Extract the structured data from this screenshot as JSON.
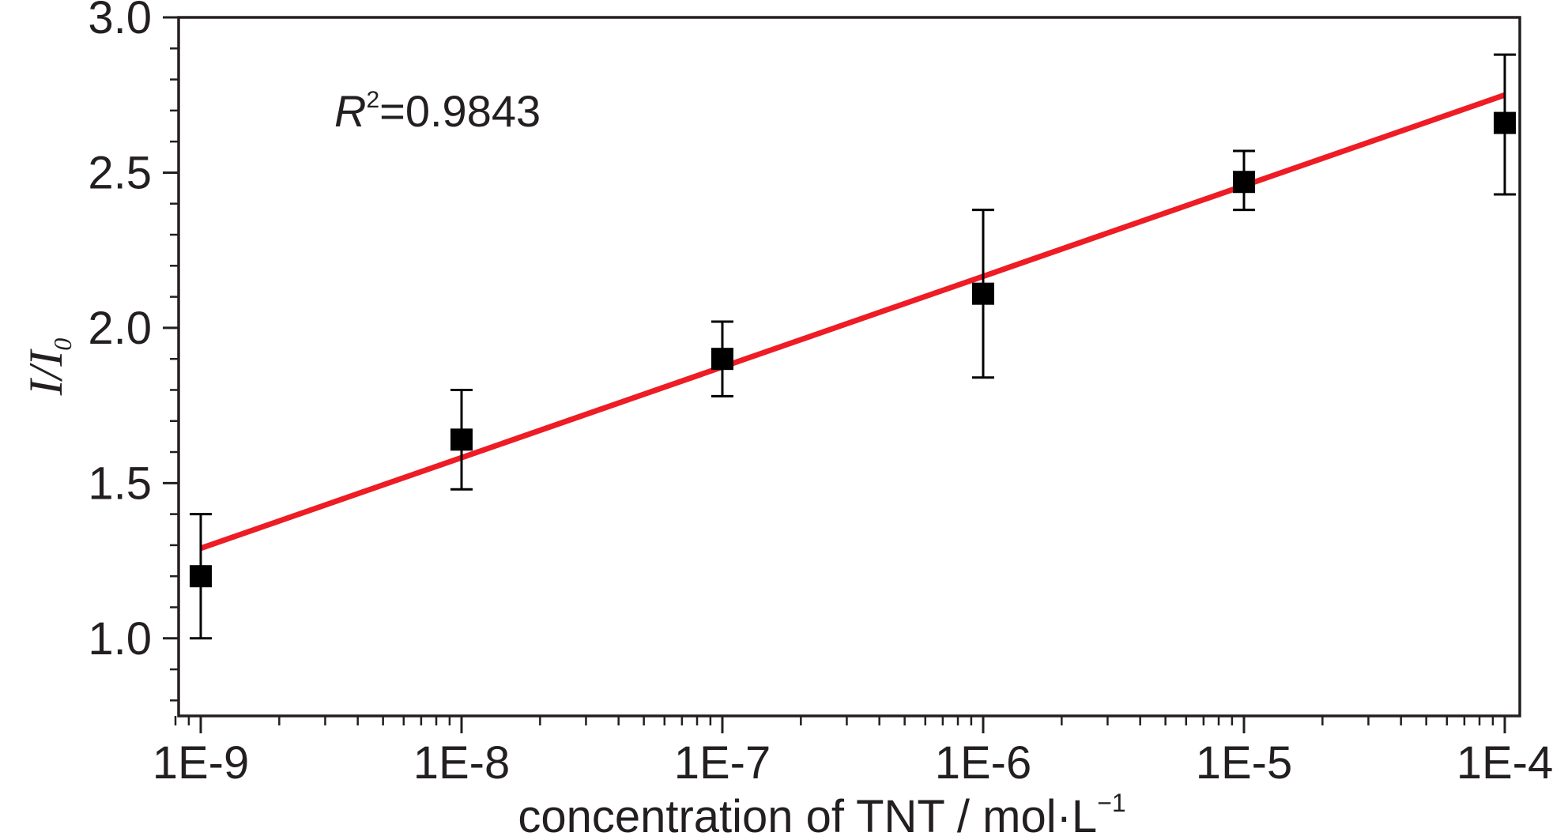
{
  "chart_data": {
    "type": "scatter",
    "title": "",
    "xlabel": "concentration of TNT / mol·L",
    "xlabel_sup": "−1",
    "ylabel": "I/I",
    "ylabel_sub": "0",
    "x_scale": "log",
    "xlim": [
      8e-10,
      0.00011
    ],
    "ylim": [
      0.75,
      3.0
    ],
    "x_ticks": [
      {
        "value": 1e-09,
        "label": "1E-9"
      },
      {
        "value": 1e-08,
        "label": "1E-8"
      },
      {
        "value": 1e-07,
        "label": "1E-7"
      },
      {
        "value": 1e-06,
        "label": "1E-6"
      },
      {
        "value": 1e-05,
        "label": "1E-5"
      },
      {
        "value": 0.0001,
        "label": "1E-4"
      }
    ],
    "y_ticks": [
      {
        "value": 1.0,
        "label": "1.0"
      },
      {
        "value": 1.5,
        "label": "1.5"
      },
      {
        "value": 2.0,
        "label": "2.0"
      },
      {
        "value": 2.5,
        "label": "2.5"
      },
      {
        "value": 3.0,
        "label": "3.0"
      }
    ],
    "grid": false,
    "series": [
      {
        "type": "scatter",
        "marker": "square",
        "color": "#000000",
        "points": [
          {
            "x": 1e-09,
            "y": 1.2,
            "yerr_low": 1.0,
            "yerr_high": 1.4
          },
          {
            "x": 1e-08,
            "y": 1.64,
            "yerr_low": 1.48,
            "yerr_high": 1.8
          },
          {
            "x": 1e-07,
            "y": 1.9,
            "yerr_low": 1.78,
            "yerr_high": 2.02
          },
          {
            "x": 1e-06,
            "y": 2.11,
            "yerr_low": 1.84,
            "yerr_high": 2.38
          },
          {
            "x": 1e-05,
            "y": 2.47,
            "yerr_low": 2.38,
            "yerr_high": 2.57
          },
          {
            "x": 0.0001,
            "y": 2.66,
            "yerr_low": 2.43,
            "yerr_high": 2.88
          }
        ]
      },
      {
        "type": "line",
        "color": "#ee1c24",
        "points": [
          {
            "x": 1e-09,
            "y": 1.29
          },
          {
            "x": 0.0001,
            "y": 2.75
          }
        ]
      }
    ],
    "annotation": {
      "prefix": "R",
      "sup": "2",
      "value": "=0.9843"
    }
  }
}
